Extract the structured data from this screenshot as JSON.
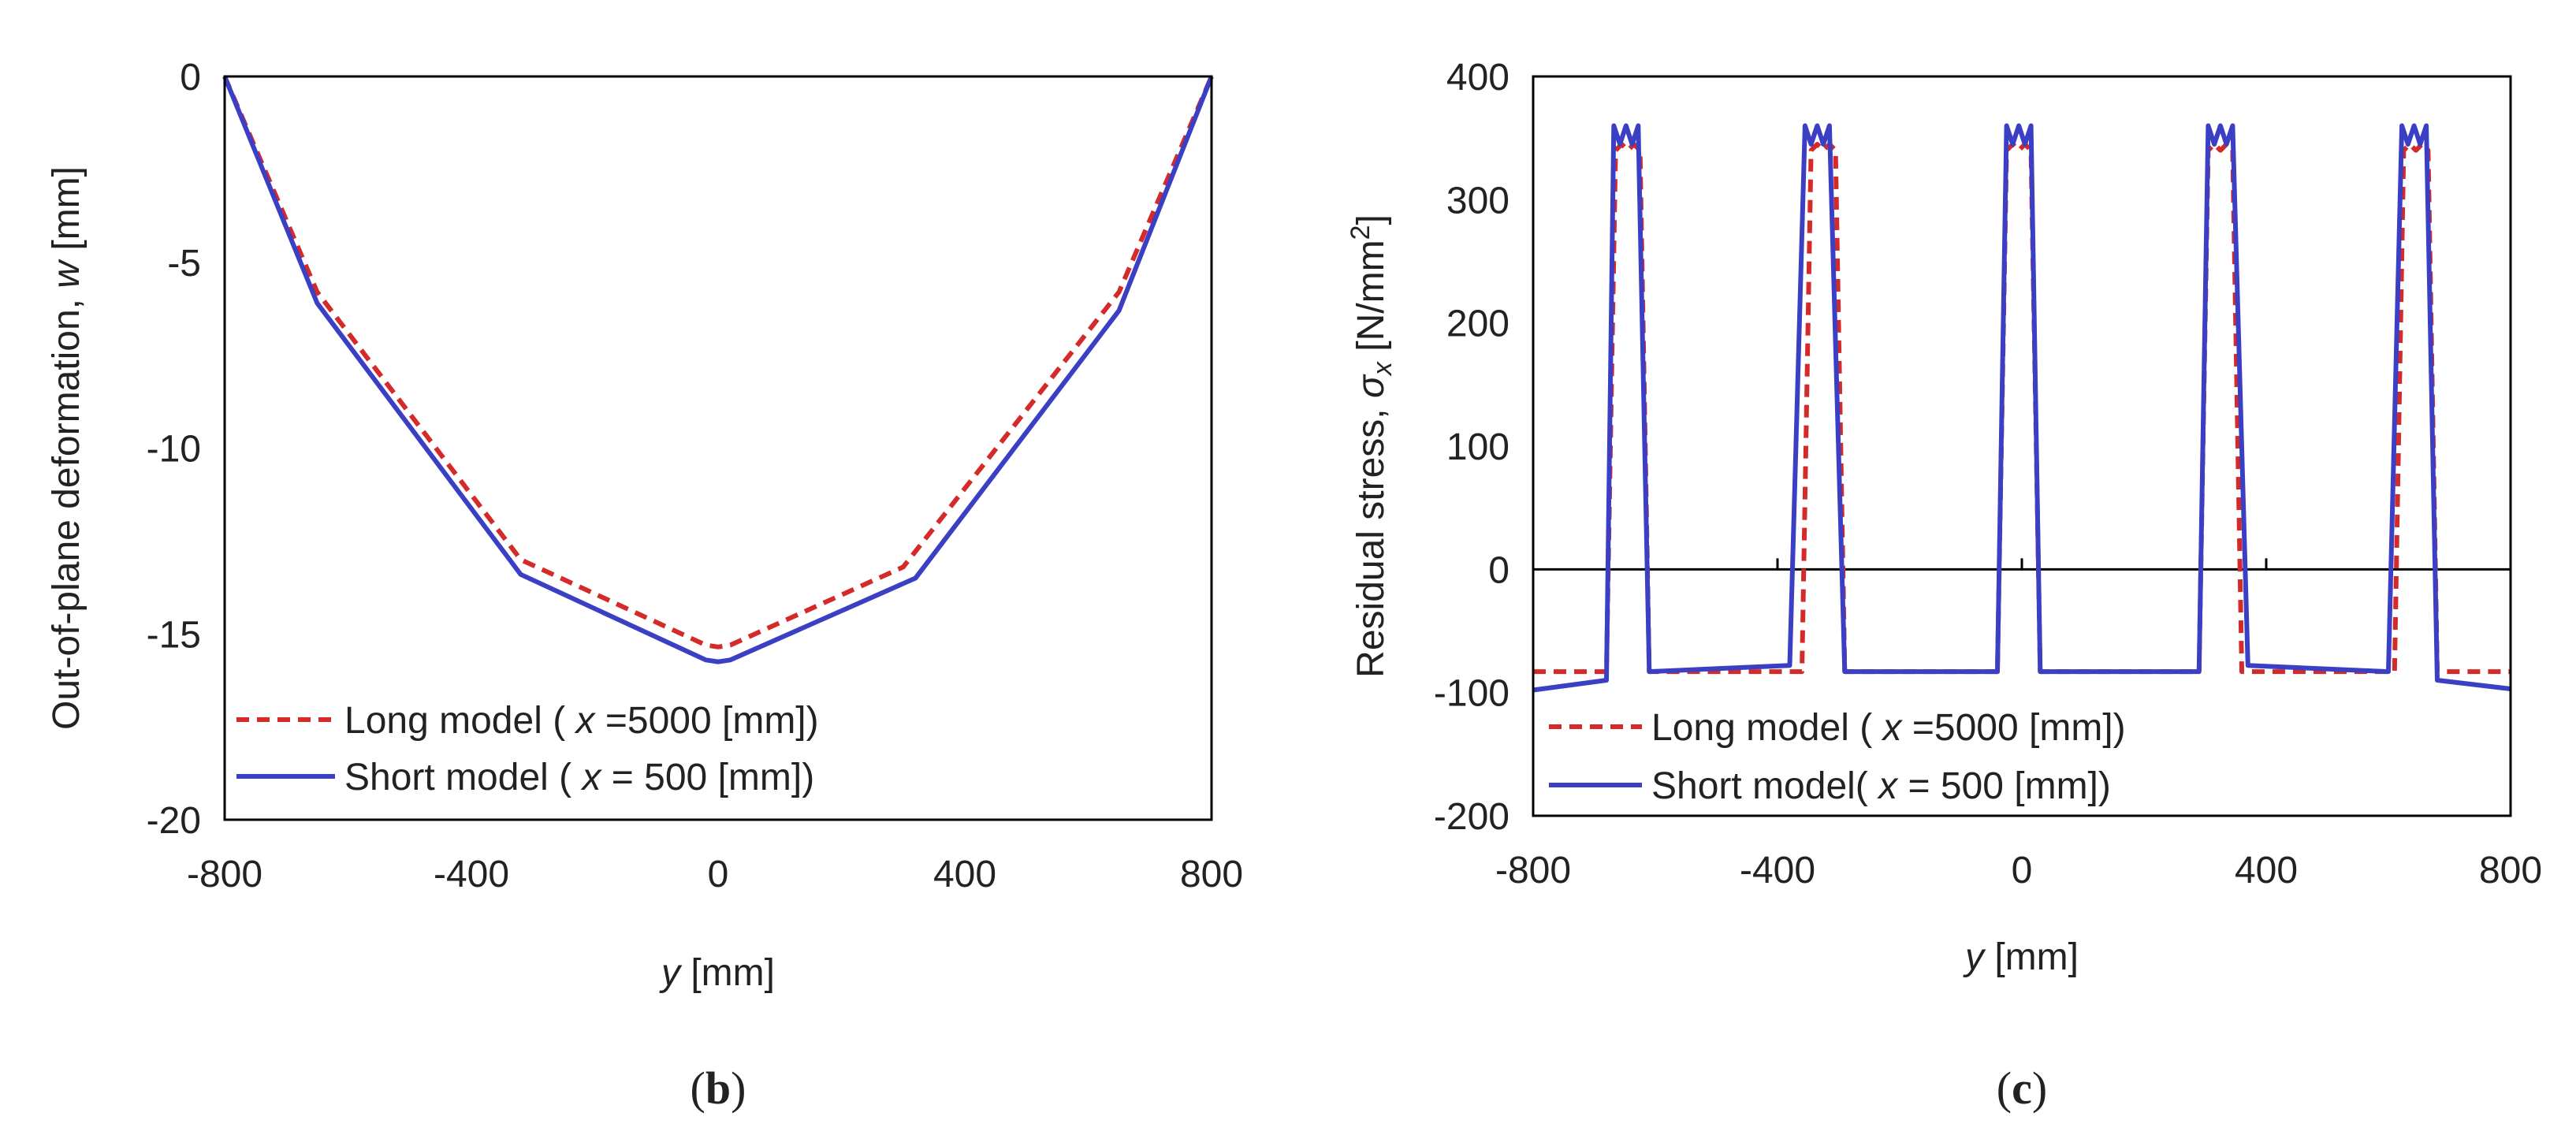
{
  "chart_data": [
    {
      "type": "line",
      "panel_label": "(b)",
      "xlabel_var": "y",
      "xlabel_unit": " [mm]",
      "ylabel": "Out-of-plane deformation, ",
      "ylabel_var": "w",
      "ylabel_unit": " [mm]",
      "xlim": [
        -800,
        800
      ],
      "ylim": [
        -20,
        0
      ],
      "xticks": [
        -800,
        -400,
        0,
        400,
        800
      ],
      "xtick_labels": [
        "-800",
        "-400",
        "0",
        "400",
        "800"
      ],
      "yticks": [
        0,
        -5,
        -10,
        -15,
        -20
      ],
      "ytick_labels": [
        "0",
        "-5",
        "-10",
        "-15",
        "-20"
      ],
      "legend_position": "bottom-left",
      "series": [
        {
          "name": "Long model",
          "legend_pre": "Long model  ( ",
          "legend_var": "x",
          "legend_post": " =5000 [mm])",
          "color": "#d42a2a",
          "style": "dashed",
          "x": [
            -800,
            -650,
            -320,
            -20,
            0,
            20,
            300,
            650,
            800
          ],
          "y": [
            0,
            -5.8,
            -13.0,
            -15.3,
            -15.35,
            -15.3,
            -13.2,
            -5.8,
            0
          ]
        },
        {
          "name": "Short model",
          "legend_pre": "Short model ( ",
          "legend_var": "x",
          "legend_post": " =  500 [mm])",
          "color": "#3b3fc4",
          "style": "solid",
          "x": [
            -800,
            -650,
            -320,
            -20,
            0,
            20,
            320,
            650,
            800
          ],
          "y": [
            0,
            -6.1,
            -13.4,
            -15.7,
            -15.75,
            -15.7,
            -13.5,
            -6.3,
            0
          ]
        }
      ]
    },
    {
      "type": "line",
      "panel_label": "(c)",
      "xlabel_var": "y",
      "xlabel_unit": " [mm]",
      "ylabel": "Residual stress, ",
      "ylabel_var": "σ",
      "ylabel_sub": "x",
      "ylabel_unit": "  [N/mm",
      "ylabel_sup": "2",
      "ylabel_end": "]",
      "xlim": [
        -800,
        800
      ],
      "ylim": [
        -200,
        400
      ],
      "xticks": [
        -800,
        -400,
        0,
        400,
        800
      ],
      "xtick_labels": [
        "-800",
        "-400",
        "0",
        "400",
        "800"
      ],
      "yticks": [
        400,
        300,
        200,
        100,
        0,
        -100,
        -200
      ],
      "ytick_labels": [
        "400",
        "300",
        "200",
        "100",
        "0",
        "-100",
        "-200"
      ],
      "zero_line": true,
      "legend_position": "bottom-left",
      "series": [
        {
          "name": "Long model",
          "legend_pre": "Long model ( ",
          "legend_var": "x",
          "legend_post": " =5000 [mm])",
          "color": "#d42a2a",
          "style": "dashed",
          "x": [
            -800,
            -680,
            -665,
            -655,
            -645,
            -635,
            -625,
            -610,
            -360,
            -345,
            -335,
            -325,
            -315,
            -305,
            -290,
            -40,
            -25,
            -15,
            -5,
            5,
            15,
            30,
            290,
            305,
            315,
            325,
            335,
            345,
            360,
            610,
            625,
            635,
            645,
            655,
            665,
            680,
            800
          ],
          "y": [
            -83,
            -83,
            340,
            345,
            340,
            345,
            340,
            -83,
            -83,
            340,
            345,
            340,
            345,
            340,
            -83,
            -83,
            340,
            345,
            340,
            345,
            340,
            -83,
            -83,
            340,
            345,
            340,
            345,
            340,
            -83,
            -83,
            340,
            345,
            340,
            345,
            340,
            -83,
            -83
          ]
        },
        {
          "name": "Short model",
          "legend_pre": "Short model( ",
          "legend_var": "x",
          "legend_post": " =  500 [mm])",
          "color": "#3b3fc4",
          "style": "solid",
          "x": [
            -800,
            -680,
            -668,
            -658,
            -648,
            -638,
            -628,
            -610,
            -380,
            -355,
            -345,
            -335,
            -325,
            -315,
            -290,
            -40,
            -25,
            -15,
            -5,
            5,
            15,
            30,
            290,
            305,
            315,
            325,
            335,
            345,
            370,
            600,
            622,
            632,
            642,
            652,
            662,
            680,
            800
          ],
          "y": [
            -98,
            -90,
            360,
            345,
            360,
            345,
            360,
            -83,
            -78,
            360,
            345,
            360,
            345,
            360,
            -83,
            -83,
            360,
            345,
            360,
            345,
            360,
            -83,
            -83,
            360,
            345,
            360,
            345,
            360,
            -78,
            -83,
            360,
            345,
            360,
            345,
            360,
            -90,
            -97
          ]
        }
      ]
    }
  ]
}
